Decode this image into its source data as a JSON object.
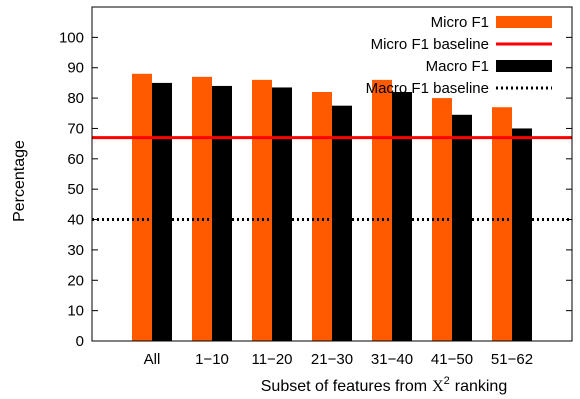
{
  "colors": {
    "micro": "#ff5a00",
    "macro": "#000000",
    "micro_baseline": "#ff0000",
    "macro_baseline": "#000000"
  },
  "chart_data": {
    "type": "bar",
    "xlabel": "Subset of features from",
    "xlabel_symbol": "X",
    "xlabel_superscript": "2",
    "xlabel_suffix": "ranking",
    "ylabel": "Percentage",
    "ylim": [
      0,
      110
    ],
    "yticks": [
      0,
      10,
      20,
      30,
      40,
      50,
      60,
      70,
      80,
      90,
      100
    ],
    "grid": false,
    "legend_position": "top-right",
    "categories": [
      "All",
      "1−10",
      "11−20",
      "21−30",
      "31−40",
      "41−50",
      "51−62"
    ],
    "series": [
      {
        "name": "Micro F1",
        "values": [
          88,
          87,
          86,
          82,
          86,
          80,
          77
        ]
      },
      {
        "name": "Macro F1",
        "values": [
          85,
          84,
          83.5,
          77.5,
          82,
          74.5,
          70
        ]
      }
    ],
    "baselines": [
      {
        "name": "Micro F1 baseline",
        "value": 67,
        "style": "solid"
      },
      {
        "name": "Macro F1 baseline",
        "value": 40,
        "style": "dotted"
      }
    ]
  }
}
